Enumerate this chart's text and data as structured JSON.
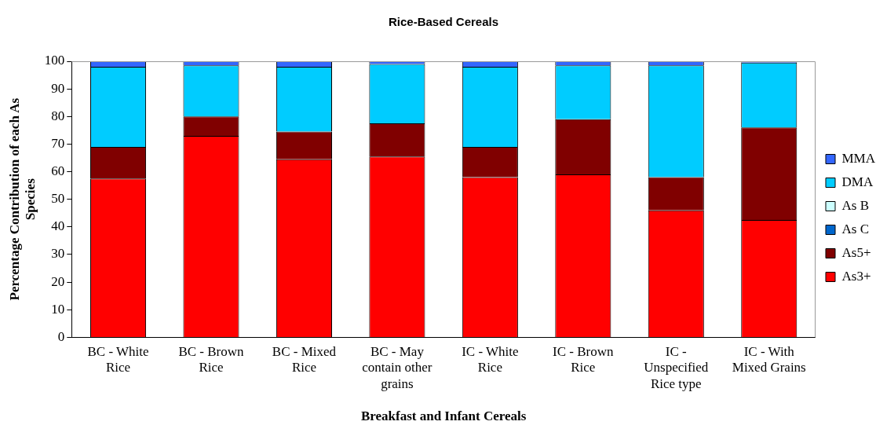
{
  "chart_data": {
    "type": "bar",
    "stacked": true,
    "title": "Rice-Based Cereals",
    "xlabel": "Breakfast and Infant Cereals",
    "ylabel": "Percentage Contribution of each As Species",
    "legend": "right",
    "categories": [
      "BC - White Rice",
      "BC - Brown Rice",
      "BC - Mixed Rice",
      "BC - May contain other grains",
      "IC - White Rice",
      "IC - Brown Rice",
      "IC - Unspecified Rice type",
      "IC - With Mixed Grains"
    ],
    "ylim": [
      0,
      100
    ],
    "yticks": [
      0,
      10,
      20,
      30,
      40,
      50,
      60,
      70,
      80,
      90,
      100
    ],
    "series": [
      {
        "name": "As3+",
        "color": "#ff0000",
        "values": [
          57.5,
          73,
          64.5,
          65.5,
          58,
          59,
          46,
          42.5
        ]
      },
      {
        "name": "As5+",
        "color": "#800000",
        "values": [
          11.5,
          7,
          10,
          12,
          11,
          20,
          12,
          33.5
        ]
      },
      {
        "name": "As C",
        "color": "#0066cc",
        "values": [
          0,
          0,
          0,
          0,
          0,
          0,
          0,
          0
        ]
      },
      {
        "name": "As B",
        "color": "#ccffff",
        "values": [
          0,
          0,
          0,
          0,
          0,
          0,
          0,
          0
        ]
      },
      {
        "name": "DMA",
        "color": "#00ccff",
        "values": [
          29,
          18.5,
          23.5,
          21.5,
          29,
          19.5,
          40.5,
          23.5
        ]
      },
      {
        "name": "MMA",
        "color": "#3366ff",
        "values": [
          2,
          1.5,
          2,
          1,
          2,
          1.5,
          1.5,
          0.5
        ]
      }
    ]
  }
}
